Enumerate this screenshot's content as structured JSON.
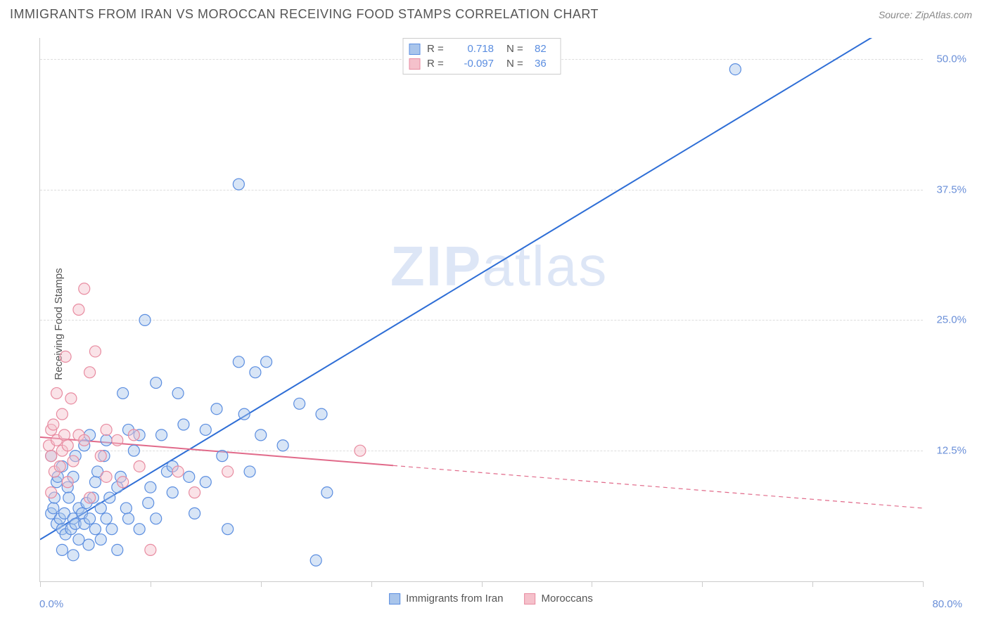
{
  "header": {
    "title": "IMMIGRANTS FROM IRAN VS MOROCCAN RECEIVING FOOD STAMPS CORRELATION CHART",
    "source": "Source: ZipAtlas.com"
  },
  "watermark": {
    "zip": "ZIP",
    "atlas": "atlas"
  },
  "chart": {
    "type": "scatter",
    "ylabel": "Receiving Food Stamps",
    "xlim": [
      0,
      80
    ],
    "ylim": [
      0,
      52
    ],
    "xtick_positions": [
      0,
      10,
      20,
      30,
      40,
      50,
      60,
      70,
      80
    ],
    "ytick_positions": [
      12.5,
      25.0,
      37.5,
      50.0
    ],
    "ytick_labels": [
      "12.5%",
      "25.0%",
      "37.5%",
      "50.0%"
    ],
    "xaxis_left_label": "0.0%",
    "xaxis_right_label": "80.0%",
    "grid_color": "#dddddd",
    "axis_color": "#cccccc",
    "background_color": "#ffffff",
    "tick_label_color": "#6a8fd8",
    "marker_radius": 8,
    "marker_stroke_width": 1.2,
    "series": [
      {
        "name": "Immigrants from Iran",
        "fill": "#a9c5eb",
        "stroke": "#5a8de0",
        "swatch_fill": "#a9c5eb",
        "swatch_stroke": "#5a8de0",
        "r_label": "R =",
        "r_value": "0.718",
        "n_label": "N =",
        "n_value": "82",
        "points": [
          [
            1.0,
            6.5
          ],
          [
            1.2,
            7.0
          ],
          [
            1.3,
            8.0
          ],
          [
            1.5,
            5.5
          ],
          [
            1.5,
            9.5
          ],
          [
            1.6,
            10.0
          ],
          [
            1.8,
            6.0
          ],
          [
            2.0,
            5.0
          ],
          [
            2.0,
            11.0
          ],
          [
            2.2,
            6.5
          ],
          [
            2.3,
            4.5
          ],
          [
            2.5,
            9.0
          ],
          [
            2.6,
            8.0
          ],
          [
            2.8,
            5.0
          ],
          [
            3.0,
            6.0
          ],
          [
            3.0,
            10.0
          ],
          [
            3.2,
            5.5
          ],
          [
            3.2,
            12.0
          ],
          [
            3.5,
            7.0
          ],
          [
            3.5,
            4.0
          ],
          [
            3.8,
            6.5
          ],
          [
            4.0,
            5.5
          ],
          [
            4.0,
            13.0
          ],
          [
            4.2,
            7.5
          ],
          [
            4.4,
            3.5
          ],
          [
            4.5,
            6.0
          ],
          [
            4.5,
            14.0
          ],
          [
            4.8,
            8.0
          ],
          [
            5.0,
            5.0
          ],
          [
            5.0,
            9.5
          ],
          [
            5.2,
            10.5
          ],
          [
            5.5,
            4.0
          ],
          [
            5.5,
            7.0
          ],
          [
            5.8,
            12.0
          ],
          [
            6.0,
            6.0
          ],
          [
            6.0,
            13.5
          ],
          [
            6.3,
            8.0
          ],
          [
            6.5,
            5.0
          ],
          [
            7.0,
            3.0
          ],
          [
            7.0,
            9.0
          ],
          [
            7.3,
            10.0
          ],
          [
            7.5,
            18.0
          ],
          [
            7.8,
            7.0
          ],
          [
            8.0,
            6.0
          ],
          [
            8.0,
            14.5
          ],
          [
            8.5,
            12.5
          ],
          [
            9.0,
            5.0
          ],
          [
            9.0,
            14.0
          ],
          [
            9.5,
            25.0
          ],
          [
            9.8,
            7.5
          ],
          [
            10.0,
            9.0
          ],
          [
            10.5,
            19.0
          ],
          [
            10.5,
            6.0
          ],
          [
            11.0,
            14.0
          ],
          [
            11.5,
            10.5
          ],
          [
            12.0,
            11.0
          ],
          [
            12.0,
            8.5
          ],
          [
            12.5,
            18.0
          ],
          [
            13.0,
            15.0
          ],
          [
            13.5,
            10.0
          ],
          [
            14.0,
            6.5
          ],
          [
            15.0,
            14.5
          ],
          [
            15.0,
            9.5
          ],
          [
            16.0,
            16.5
          ],
          [
            16.5,
            12.0
          ],
          [
            17.0,
            5.0
          ],
          [
            18.0,
            21.0
          ],
          [
            18.0,
            38.0
          ],
          [
            18.5,
            16.0
          ],
          [
            19.0,
            10.5
          ],
          [
            19.5,
            20.0
          ],
          [
            20.0,
            14.0
          ],
          [
            20.5,
            21.0
          ],
          [
            22.0,
            13.0
          ],
          [
            23.5,
            17.0
          ],
          [
            25.0,
            2.0
          ],
          [
            25.5,
            16.0
          ],
          [
            26.0,
            8.5
          ],
          [
            1.0,
            12.0
          ],
          [
            2.0,
            3.0
          ],
          [
            3.0,
            2.5
          ],
          [
            63.0,
            49.0
          ]
        ],
        "regression": {
          "x1": 0,
          "y1": 4.0,
          "x2": 80,
          "y2": 55.0,
          "color": "#2e6ed6",
          "width": 2
        }
      },
      {
        "name": "Moroccans",
        "fill": "#f5c1cb",
        "stroke": "#e88ba0",
        "swatch_fill": "#f5c1cb",
        "swatch_stroke": "#e88ba0",
        "r_label": "R =",
        "r_value": "-0.097",
        "n_label": "N =",
        "n_value": "36",
        "points": [
          [
            0.8,
            13.0
          ],
          [
            1.0,
            14.5
          ],
          [
            1.0,
            12.0
          ],
          [
            1.2,
            15.0
          ],
          [
            1.3,
            10.5
          ],
          [
            1.5,
            13.5
          ],
          [
            1.5,
            18.0
          ],
          [
            1.8,
            11.0
          ],
          [
            2.0,
            16.0
          ],
          [
            2.0,
            12.5
          ],
          [
            2.2,
            14.0
          ],
          [
            2.3,
            21.5
          ],
          [
            2.5,
            13.0
          ],
          [
            2.5,
            9.5
          ],
          [
            2.8,
            17.5
          ],
          [
            3.0,
            11.5
          ],
          [
            3.5,
            26.0
          ],
          [
            3.5,
            14.0
          ],
          [
            4.0,
            13.5
          ],
          [
            4.0,
            28.0
          ],
          [
            4.5,
            20.0
          ],
          [
            4.5,
            8.0
          ],
          [
            5.0,
            22.0
          ],
          [
            5.5,
            12.0
          ],
          [
            6.0,
            14.5
          ],
          [
            6.0,
            10.0
          ],
          [
            7.0,
            13.5
          ],
          [
            7.5,
            9.5
          ],
          [
            8.5,
            14.0
          ],
          [
            9.0,
            11.0
          ],
          [
            10.0,
            3.0
          ],
          [
            12.5,
            10.5
          ],
          [
            14.0,
            8.5
          ],
          [
            17.0,
            10.5
          ],
          [
            29.0,
            12.5
          ],
          [
            1.0,
            8.5
          ]
        ],
        "regression": {
          "x1": 0,
          "y1": 13.8,
          "x2": 80,
          "y2": 7.0,
          "solid_until_x": 32,
          "color": "#e16a8a",
          "width": 2
        }
      }
    ]
  },
  "legend_bottom": {
    "items": [
      {
        "label": "Immigrants from Iran",
        "fill": "#a9c5eb",
        "stroke": "#5a8de0"
      },
      {
        "label": "Moroccans",
        "fill": "#f5c1cb",
        "stroke": "#e88ba0"
      }
    ]
  }
}
